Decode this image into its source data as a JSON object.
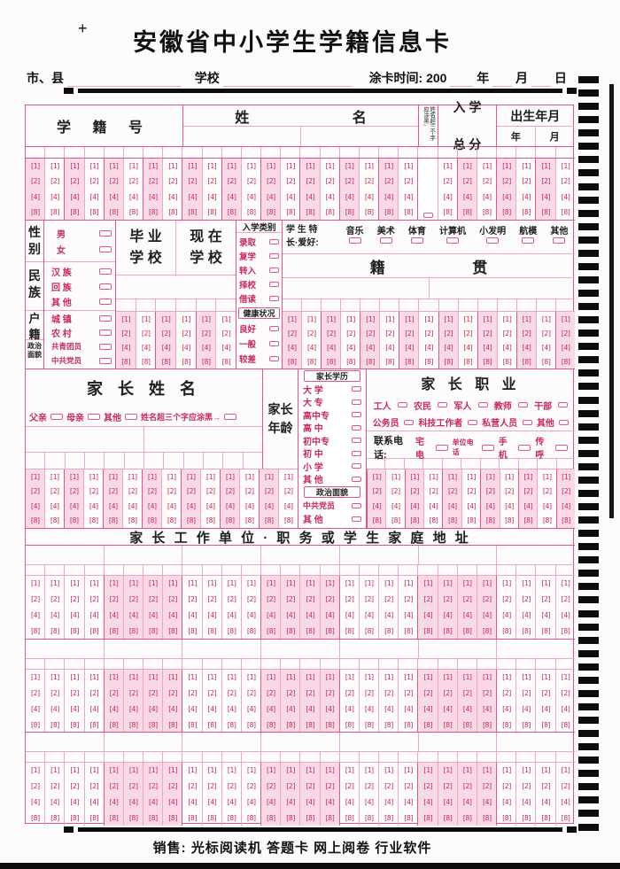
{
  "page": {
    "corner_mark": "+",
    "title": "安徽省中小学生学籍信息卡",
    "footer": "销售: 光标阅读机 答题卡 网上阅卷 行业软件"
  },
  "info_line": {
    "city_label": "市、县",
    "school_label": "学校",
    "time_label": "涂卡时间: 200",
    "year": "年",
    "month": "月",
    "day": "日"
  },
  "bubbles": {
    "digits": [
      "1",
      "2",
      "4",
      "8"
    ]
  },
  "header_row": {
    "student_id": "学 籍 号",
    "name": "姓",
    "name2": "名",
    "note_vertical": "姓名超三个字应涂黑↓",
    "total_l1": "入 学",
    "total_l2": "总 分",
    "birth": "出生年月",
    "birth_year": "年",
    "birth_month": "月"
  },
  "middle": {
    "gender": {
      "label": "性别",
      "options": [
        "男",
        "女"
      ]
    },
    "ethnic": {
      "label": "民族",
      "options": [
        "汉 族",
        "回 族",
        "其 他"
      ]
    },
    "residence": {
      "label": "户籍",
      "options": [
        "城 镇",
        "农 村"
      ]
    },
    "politics": {
      "label": "政治面貌",
      "options": [
        "共青团员",
        "中共党员"
      ]
    },
    "grad_l1": "毕 业",
    "grad_l2": "学 校",
    "cur_l1": "现 在",
    "cur_l2": "学 校",
    "enroll": {
      "label": "入学类别",
      "options": [
        "录取",
        "复学",
        "转入",
        "择校",
        "借读"
      ]
    },
    "health": {
      "label": "健康状况",
      "options": [
        "良好",
        "一般",
        "较差"
      ]
    },
    "specialty": {
      "label_l1": "学 生 特",
      "label_l2": "长·爱好:",
      "options": [
        "音乐",
        "美术",
        "体育",
        "计算机",
        "小发明",
        "航模",
        "其他"
      ]
    },
    "hometown_l1": "籍",
    "hometown_l2": "贯"
  },
  "parent": {
    "name_title": "家 长 姓 名",
    "name_options": [
      "父亲",
      "母亲",
      "其他"
    ],
    "name_note": "姓名超三个字应涂黑→",
    "age_label": "家长年龄",
    "edu": {
      "label": "家长学历",
      "options": [
        "大 学",
        "大 专",
        "高中专",
        "高 中",
        "初中专",
        "初 中",
        "小 学",
        "其 他"
      ]
    },
    "politics": {
      "label": "政治面貌",
      "options": [
        "中共党员",
        "其 他"
      ]
    },
    "job": {
      "title": "家 长 职 业",
      "row1": [
        "工人",
        "农民",
        "军人",
        "教师",
        "干部"
      ],
      "row2": [
        "公务员",
        "科技工作者",
        "私营人员",
        "其他"
      ]
    },
    "phone": {
      "label": "联系电话:",
      "options": [
        "宅电",
        "单位电话",
        "手机",
        "传呼"
      ]
    }
  },
  "address_title": "家 长 工 作 单 位 · 职 务 或 学 生 家 庭 地 址"
}
